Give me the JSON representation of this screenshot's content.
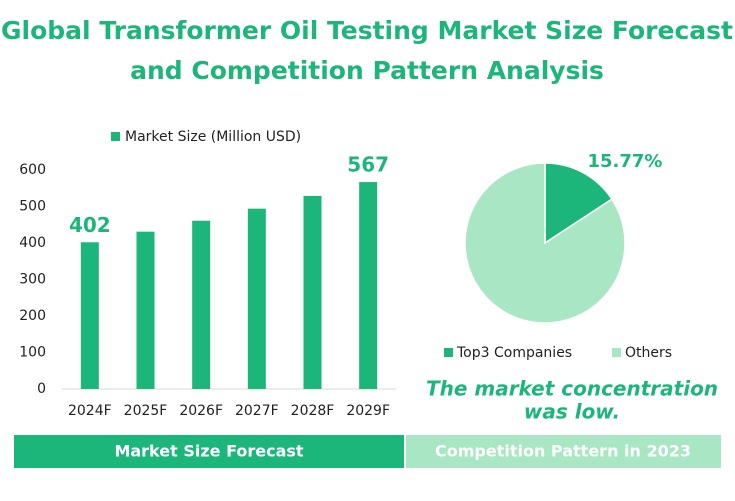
{
  "title": [
    "Global Transformer Oil Testing Market Size Forecast",
    "and Competition Pattern Analysis"
  ],
  "panels": [
    "Market Size Forecast",
    "Competition Pattern in 2023"
  ],
  "chart_data": [
    {
      "type": "bar",
      "categories": [
        "2024F",
        "2025F",
        "2026F",
        "2027F",
        "2028F",
        "2029F"
      ],
      "series": [
        {
          "name": "Market Size (Million USD)",
          "color": "#1db67a",
          "values": [
            402,
            431,
            461,
            494,
            529,
            567
          ],
          "value_labels": [
            "402",
            null,
            null,
            null,
            null,
            "567"
          ]
        }
      ],
      "ylim": [
        0,
        600
      ],
      "yticks": [
        0,
        100,
        200,
        300,
        400,
        500,
        600
      ],
      "grid": false,
      "legend": "top"
    },
    {
      "type": "pie",
      "categories": [
        "Top3 Companies",
        "Others"
      ],
      "values": [
        15.77,
        84.23
      ],
      "colors": [
        "#1db67a",
        "#a8e6c4"
      ],
      "value_labels": [
        "15.77%",
        null
      ],
      "legend": "bottom",
      "annotation": [
        "The market concentration",
        "was low."
      ]
    }
  ]
}
